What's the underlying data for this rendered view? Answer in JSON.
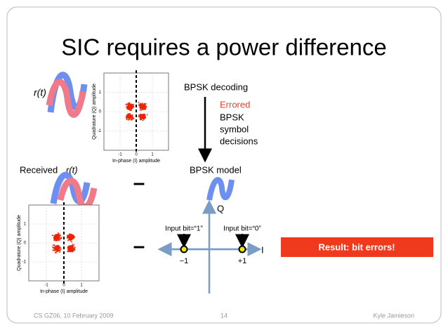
{
  "title": "SIC requires a power difference",
  "top": {
    "signal": "r(t)",
    "step": "BPSK decoding",
    "errored": "Errored",
    "decision_lines": [
      "BPSK",
      "symbol",
      "decisions"
    ]
  },
  "middle": {
    "received": "Received",
    "signal": "r(t)",
    "minus": "–",
    "model": "BPSK model"
  },
  "plots": [
    {
      "y_label": "Quadrature (Q) amplitude",
      "x_label": "In-phase (I) amplitude",
      "yticks": [
        "1",
        "0",
        "-1"
      ],
      "xticks": [
        "-1",
        "0",
        "1"
      ]
    },
    {
      "y_label": "Quadrature (Q) amplitude",
      "x_label": "In-phase (I) amplitude",
      "yticks": [
        "1",
        "0",
        "-1"
      ],
      "xticks": [
        "-1",
        "0",
        "1"
      ]
    }
  ],
  "constellation": {
    "minus": "–",
    "q_axis": "Q",
    "i_axis": "I",
    "bit1_label": "Input bit=“1”",
    "bit0_label": "Input bit=“0”",
    "left_point": "−1",
    "right_point": "+1"
  },
  "result": "Result: bit errors!",
  "footer": {
    "course": "CS GZ06, 10 February 2009",
    "page": "14",
    "author": "Kyle Jamieson"
  }
}
